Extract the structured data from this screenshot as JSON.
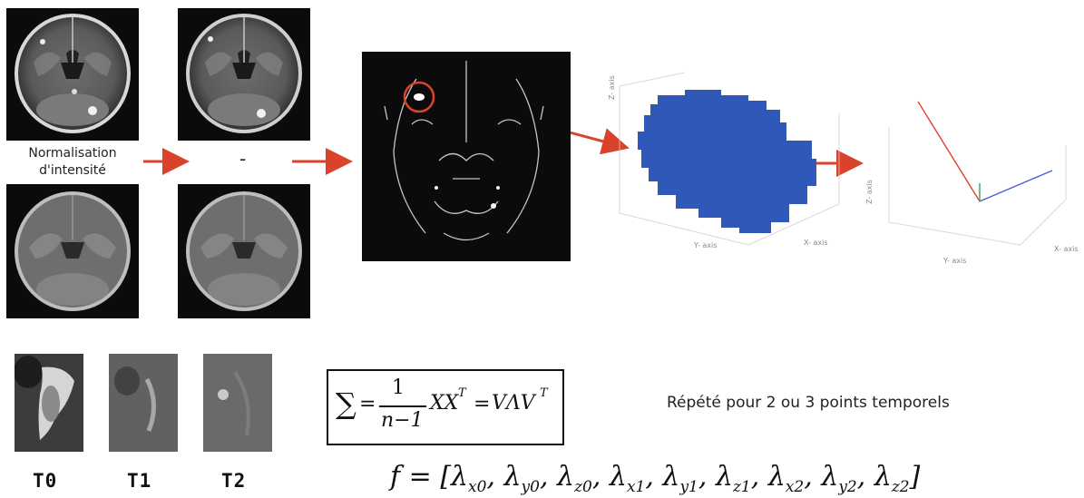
{
  "pipeline": {
    "normalisation_caption_line1": "Normalisation",
    "normalisation_caption_line2": "d'intensité",
    "subtraction_symbol": "-"
  },
  "plots": {
    "blob_z_axis": "Z- axis",
    "blob_y_axis": "Y- axis",
    "blob_x_axis": "X- axis",
    "vec_z_axis": "Z- axis",
    "vec_y_axis": "Y- axis",
    "vec_x_axis": "X- axis",
    "blob_color": "#2f58b8",
    "arrow_color": "#d9432c"
  },
  "timepoints": {
    "labels": [
      "T0",
      "T1",
      "T2"
    ]
  },
  "formulas": {
    "covariance": {
      "sum": "∑",
      "eq": "=",
      "numerator": "1",
      "denominator": "n−1",
      "xx": "XX",
      "xx_sup": "T",
      "eq2": "=",
      "vlv": "VΛV",
      "vlv_sup": "T"
    },
    "repeat_note": "Répété pour 2 ou 3 points temporels",
    "feature_vector": {
      "prefix": "f = [",
      "terms": [
        "x0",
        "y0",
        "z0",
        "x1",
        "y1",
        "z1",
        "x2",
        "y2",
        "z2"
      ],
      "lambda": "λ",
      "suffix": "]"
    }
  }
}
